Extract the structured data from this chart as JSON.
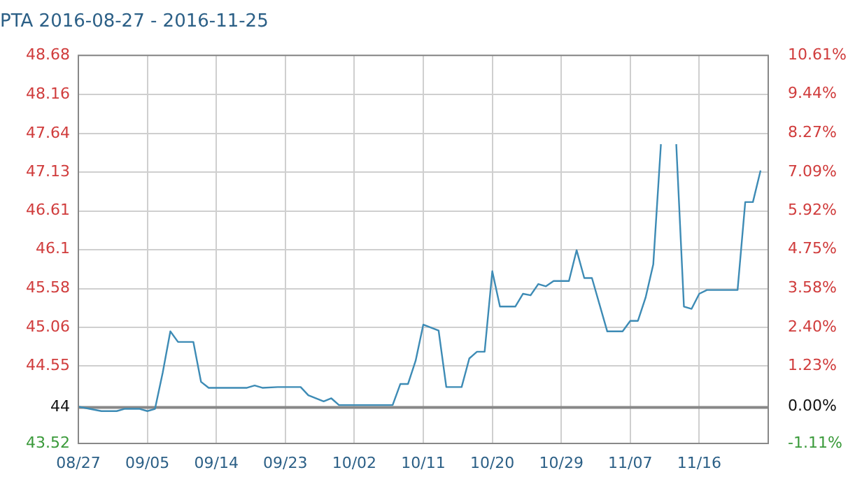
{
  "chart_data": {
    "type": "line",
    "title": "PTA 2016-08-27 - 2016-11-25",
    "x": [
      "--08-27",
      "--08-28",
      "--08-30",
      "--09-01",
      "--09-02",
      "--09-04",
      "--09-05",
      "--09-06",
      "--09-07",
      "--09-08",
      "--09-09",
      "--09-11",
      "--09-12",
      "--09-13",
      "--09-18",
      "--09-19",
      "--09-20",
      "--09-22",
      "--09-25",
      "--09-26",
      "--09-28",
      "--09-29",
      "--09-30",
      "--10-07",
      "--10-08",
      "--10-09",
      "--10-10",
      "--10-11",
      "--10-12",
      "--10-13",
      "--10-14",
      "--10-16",
      "--10-17",
      "--10-18",
      "--10-19",
      "--10-20",
      "--10-21",
      "--10-23",
      "--10-24",
      "--10-25",
      "--10-26",
      "--10-27",
      "--10-28",
      "--10-30",
      "--10-31",
      "--11-01",
      "--11-02",
      "--11-04",
      "--11-06",
      "--11-07",
      "--11-08",
      "--11-09",
      "--11-10",
      "--11-11",
      "--11-12",
      "--11-13",
      "--11-14",
      "--11-15",
      "--11-16",
      "--11-17",
      "--11-21",
      "--11-22",
      "--11-23",
      "--11-24"
    ],
    "series": [
      {
        "color": "#3d8bb5",
        "values": [
          44.01,
          43.99,
          43.95,
          43.95,
          43.98,
          43.98,
          43.95,
          43.98,
          44.46,
          45.01,
          44.87,
          44.87,
          44.34,
          44.26,
          44.26,
          44.29,
          44.26,
          44.27,
          44.27,
          44.16,
          44.08,
          44.12,
          44.03,
          44.03,
          44.31,
          44.31,
          44.62,
          45.1,
          45.06,
          45.02,
          44.27,
          44.27,
          44.65,
          44.74,
          44.74,
          45.81,
          45.34,
          45.34,
          45.51,
          45.49,
          45.64,
          45.61,
          45.68,
          45.68,
          46.09,
          45.72,
          45.72,
          45.01,
          45.01,
          45.15,
          45.15,
          45.46,
          45.9,
          47.5,
          null,
          47.5,
          45.34,
          45.31,
          45.51,
          45.56,
          45.56,
          46.73,
          46.73,
          47.15
        ]
      }
    ],
    "xlim": [
      "--08-27",
      "--11-25"
    ],
    "xticks": [
      {
        "value": "--08-27",
        "label": "08/27"
      },
      {
        "value": "--09-05",
        "label": "09/05"
      },
      {
        "value": "--09-14",
        "label": "09/14"
      },
      {
        "value": "--09-23",
        "label": "09/23"
      },
      {
        "value": "--10-02",
        "label": "10/02"
      },
      {
        "value": "--10-11",
        "label": "10/11"
      },
      {
        "value": "--10-20",
        "label": "10/20"
      },
      {
        "value": "--10-29",
        "label": "10/29"
      },
      {
        "value": "--11-07",
        "label": "11/07"
      },
      {
        "value": "--11-16",
        "label": "11/16"
      }
    ],
    "ylim": [
      43.52,
      48.68
    ],
    "yticks": [
      43.52,
      44,
      44.55,
      45.06,
      45.58,
      46.1,
      46.61,
      47.13,
      47.64,
      48.16,
      48.68
    ],
    "y2lim": [
      -1.11,
      10.61
    ],
    "y2ticks": [
      {
        "value": -1.11,
        "label": "-1.11%"
      },
      {
        "value": 0,
        "label": "0.00%"
      },
      {
        "value": 1.23,
        "label": "1.23%"
      },
      {
        "value": 2.4,
        "label": "2.40%"
      },
      {
        "value": 3.58,
        "label": "3.58%"
      },
      {
        "value": 4.75,
        "label": "4.75%"
      },
      {
        "value": 5.92,
        "label": "5.92%"
      },
      {
        "value": 7.09,
        "label": "7.09%"
      },
      {
        "value": 8.27,
        "label": "8.27%"
      },
      {
        "value": 9.44,
        "label": "9.44%"
      },
      {
        "value": 10.61,
        "label": "10.61%"
      }
    ],
    "ref_lines": [
      {
        "axis": "y",
        "value": 44,
        "color": "#888888"
      }
    ],
    "grid": true,
    "marker": "none",
    "line_style": "solid"
  }
}
